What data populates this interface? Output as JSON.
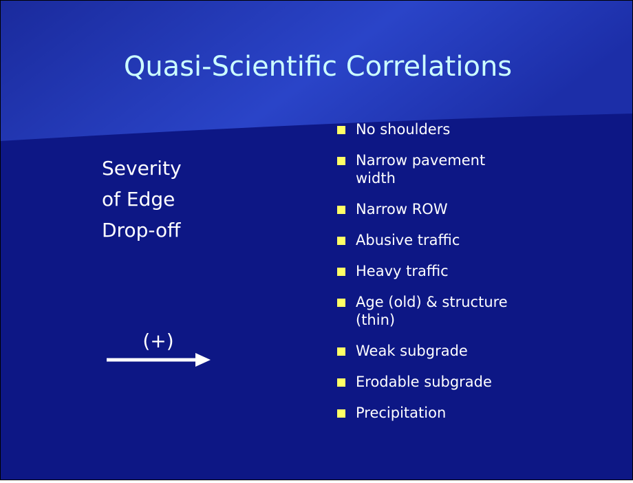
{
  "title": "Quasi-Scientific Correlations",
  "left": {
    "lines": [
      "Severity",
      "of Edge",
      "Drop-off"
    ],
    "arrow_label": "(+)"
  },
  "bullets": [
    [
      "No shoulders"
    ],
    [
      "Narrow pavement",
      "width"
    ],
    [
      "Narrow ROW"
    ],
    [
      "Abusive traffic"
    ],
    [
      "Heavy traffic"
    ],
    [
      "Age (old) & structure",
      "(thin)"
    ],
    [
      "Weak subgrade"
    ],
    [
      "Erodable subgrade"
    ],
    [
      "Precipitation"
    ]
  ]
}
